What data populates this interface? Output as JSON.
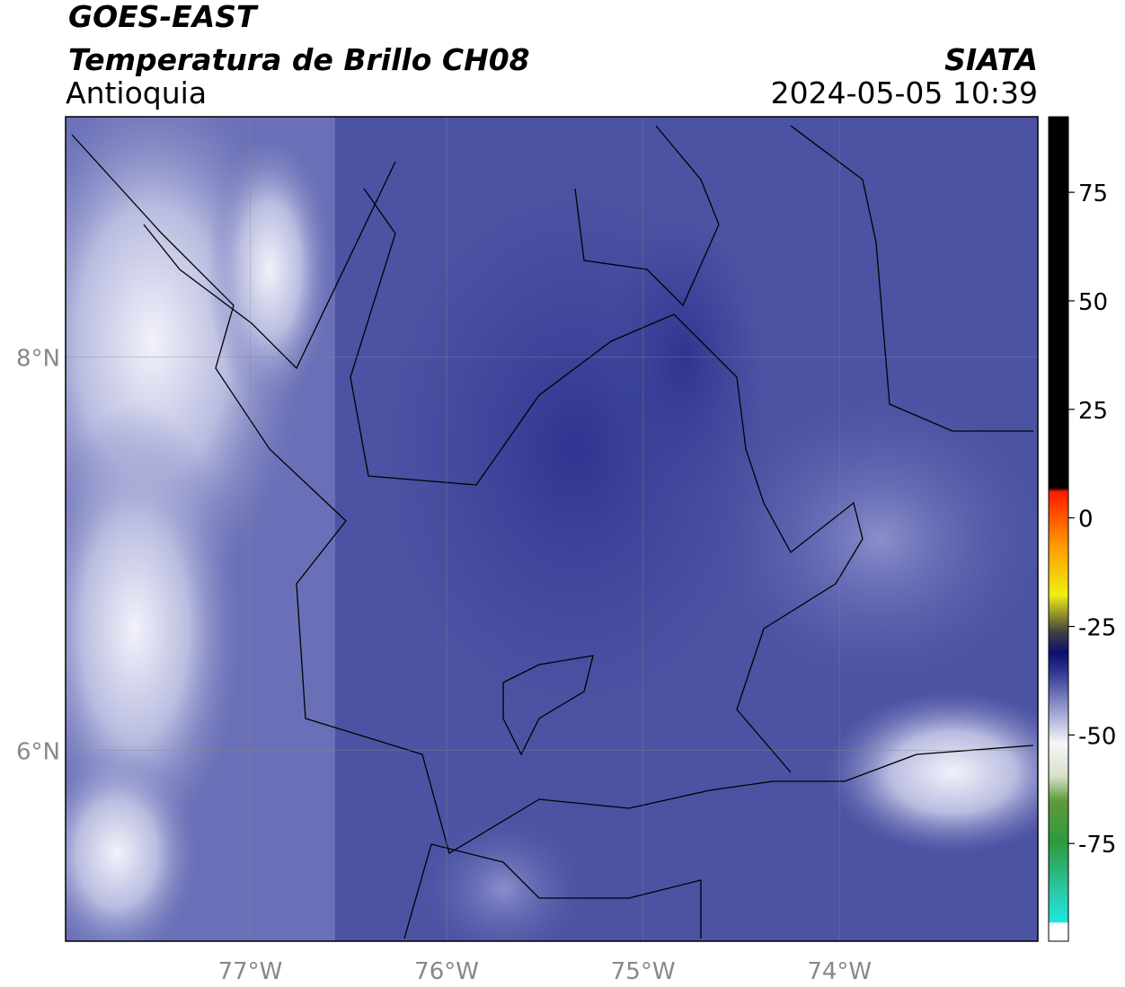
{
  "header": {
    "title": "GOES-EAST",
    "subtitle": "Temperatura de Brillo CH08",
    "region": "Antioquia",
    "org": "SIATA",
    "datetime": "2024-05-05 10:39"
  },
  "map": {
    "xlim": [
      -77.94,
      -72.99
    ],
    "ylim": [
      5.03,
      9.22
    ],
    "xticks": [
      {
        "value": -77,
        "label": "77°W"
      },
      {
        "value": -76,
        "label": "76°W"
      },
      {
        "value": -75,
        "label": "75°W"
      },
      {
        "value": -74,
        "label": "74°W"
      }
    ],
    "yticks": [
      {
        "value": 8,
        "label": "8°N"
      },
      {
        "value": 6,
        "label": "6°N"
      }
    ]
  },
  "colorbar": {
    "lim": [
      -97.5,
      92.4
    ],
    "ticks": [
      75,
      50,
      25,
      0,
      -25,
      -50,
      -75
    ]
  }
}
